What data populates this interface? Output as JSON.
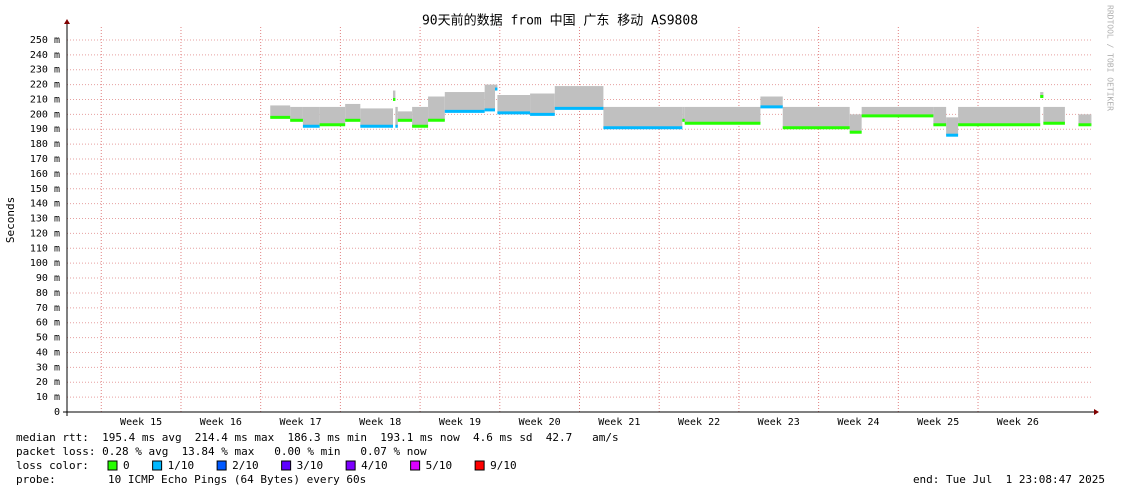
{
  "chart_data": {
    "type": "smokeping",
    "title": "90天前的数据 from 中国 广东 移动 AS9808",
    "y_label": "Seconds",
    "side_text": "RRDTOOL / TOBI OETIKER",
    "ylim": [
      0,
      0.2587
    ],
    "yticks": [
      {
        "value": 0,
        "label": "0"
      },
      {
        "value": 0.01,
        "label": "10 m"
      },
      {
        "value": 0.02,
        "label": "20 m"
      },
      {
        "value": 0.03,
        "label": "30 m"
      },
      {
        "value": 0.04,
        "label": "40 m"
      },
      {
        "value": 0.05,
        "label": "50 m"
      },
      {
        "value": 0.06,
        "label": "60 m"
      },
      {
        "value": 0.07,
        "label": "70 m"
      },
      {
        "value": 0.08,
        "label": "80 m"
      },
      {
        "value": 0.09,
        "label": "90 m"
      },
      {
        "value": 0.1,
        "label": "100 m"
      },
      {
        "value": 0.11,
        "label": "110 m"
      },
      {
        "value": 0.12,
        "label": "120 m"
      },
      {
        "value": 0.13,
        "label": "130 m"
      },
      {
        "value": 0.14,
        "label": "140 m"
      },
      {
        "value": 0.15,
        "label": "150 m"
      },
      {
        "value": 0.16,
        "label": "160 m"
      },
      {
        "value": 0.17,
        "label": "170 m"
      },
      {
        "value": 0.18,
        "label": "180 m"
      },
      {
        "value": 0.19,
        "label": "190 m"
      },
      {
        "value": 0.2,
        "label": "200 m"
      },
      {
        "value": 0.21,
        "label": "210 m"
      },
      {
        "value": 0.22,
        "label": "220 m"
      },
      {
        "value": 0.23,
        "label": "230 m"
      },
      {
        "value": 0.24,
        "label": "240 m"
      },
      {
        "value": 0.25,
        "label": "250 m"
      }
    ],
    "xlim": [
      14.57,
      27.43
    ],
    "xticks": [
      {
        "value": 15,
        "label": "Week 15"
      },
      {
        "value": 16,
        "label": "Week 16"
      },
      {
        "value": 17,
        "label": "Week 17"
      },
      {
        "value": 18,
        "label": "Week 18"
      },
      {
        "value": 19,
        "label": "Week 19"
      },
      {
        "value": 20,
        "label": "Week 20"
      },
      {
        "value": 21,
        "label": "Week 21"
      },
      {
        "value": 22,
        "label": "Week 22"
      },
      {
        "value": 23,
        "label": "Week 23"
      },
      {
        "value": 24,
        "label": "Week 24"
      },
      {
        "value": 25,
        "label": "Week 25"
      },
      {
        "value": 26,
        "label": "Week 26"
      }
    ],
    "grid": true,
    "x": [
      17.12,
      17.37,
      17.53,
      17.74,
      18.06,
      18.25,
      18.66,
      18.69,
      18.72,
      18.9,
      19.1,
      19.31,
      19.81,
      19.94,
      19.97,
      20.38,
      20.69,
      21.3,
      22.29,
      22.32,
      23.27,
      23.55,
      24.39,
      24.54,
      25.44,
      25.6,
      25.75,
      26.78,
      26.82,
      27.09,
      27.26,
      27.41
    ],
    "median": [
      0.198,
      0.196,
      0.192,
      0.193,
      0.196,
      0.192,
      0.21,
      0.192,
      0.196,
      0.192,
      0.196,
      0.202,
      0.203,
      0.217,
      0.201,
      0.2,
      0.204,
      0.191,
      0.196,
      0.194,
      0.205,
      0.191,
      0.188,
      0.199,
      0.193,
      0.186,
      0.193,
      0.212,
      0.194,
      null,
      0.193,
      0.193
    ],
    "smoke_max": [
      0.206,
      0.205,
      0.205,
      0.205,
      0.207,
      0.204,
      0.216,
      0.205,
      0.202,
      0.205,
      0.212,
      0.215,
      0.22,
      0.22,
      0.213,
      0.214,
      0.219,
      0.205,
      0.205,
      0.205,
      0.212,
      0.205,
      0.2,
      0.205,
      0.205,
      0.198,
      0.205,
      0.215,
      0.205,
      null,
      0.2,
      0.2
    ],
    "loss": [
      0,
      0,
      0.1,
      0,
      0,
      0.1,
      0,
      0.1,
      0,
      0,
      0,
      0.1,
      0.1,
      0.1,
      0.1,
      0.1,
      0.1,
      0.1,
      0,
      0,
      0.1,
      0,
      0,
      0,
      0,
      0.1,
      0,
      0,
      0,
      null,
      0,
      0
    ],
    "smoke_color": "#c0c0c0",
    "legend_title": "loss color:",
    "legend": [
      {
        "name": "0",
        "value": 0,
        "color": "#26ff00"
      },
      {
        "name": "1/10",
        "value": 0.1,
        "color": "#00b8ff"
      },
      {
        "name": "2/10",
        "value": 0.2,
        "color": "#0059ff"
      },
      {
        "name": "3/10",
        "value": 0.3,
        "color": "#5e00ff"
      },
      {
        "name": "4/10",
        "value": 0.4,
        "color": "#7e00ff"
      },
      {
        "name": "5/10",
        "value": 0.5,
        "color": "#dd00ff"
      },
      {
        "name": "9/10",
        "value": 0.9,
        "color": "#ff0000"
      }
    ],
    "stats": [
      "median rtt:  195.4 ms avg  214.4 ms max  186.3 ms min  193.1 ms now  4.6 ms sd  42.7   am/s",
      "packet loss: 0.28 % avg  13.84 % max   0.00 % min   0.07 % now"
    ],
    "probe_label": "probe:",
    "probe": "10 ICMP Echo Pings (64 Bytes) every 60s",
    "end": "end: Tue Jul  1 23:08:47 2025"
  }
}
